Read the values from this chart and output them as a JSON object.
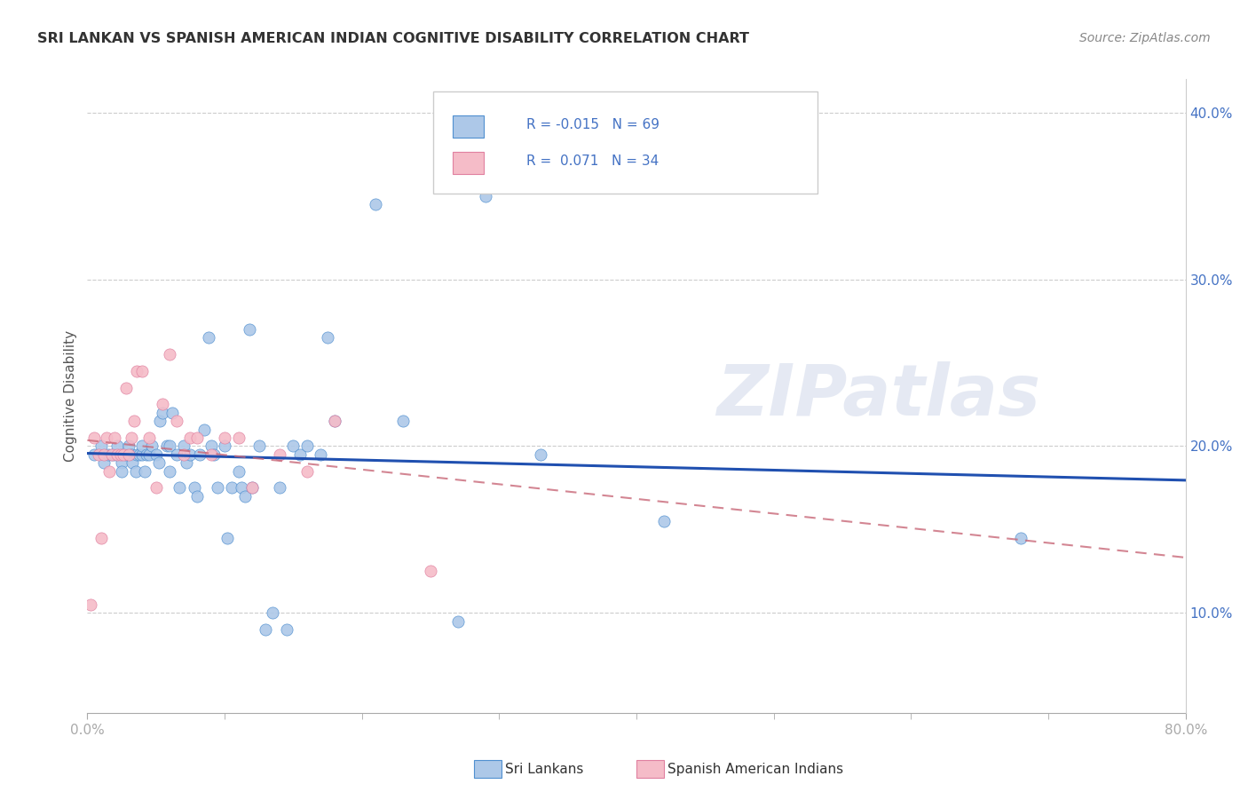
{
  "title": "SRI LANKAN VS SPANISH AMERICAN INDIAN COGNITIVE DISABILITY CORRELATION CHART",
  "source": "Source: ZipAtlas.com",
  "xlim": [
    0.0,
    0.8
  ],
  "ylim": [
    0.04,
    0.42
  ],
  "ylabel": "Cognitive Disability",
  "ylabel_ticks": [
    "10.0%",
    "20.0%",
    "30.0%",
    "40.0%"
  ],
  "ylabel_vals": [
    0.1,
    0.2,
    0.3,
    0.4
  ],
  "xlabel_edge_left": "0.0%",
  "xlabel_edge_right": "80.0%",
  "xlabel_minor_vals": [
    0.1,
    0.2,
    0.3,
    0.4,
    0.5,
    0.6,
    0.7
  ],
  "legend_label1": "Sri Lankans",
  "legend_label2": "Spanish American Indians",
  "R1": "-0.015",
  "N1": "69",
  "R2": "0.071",
  "N2": "34",
  "color_blue": "#adc8e8",
  "color_pink": "#f5bcc8",
  "color_blue_dark": "#5090d0",
  "color_pink_dark": "#e080a0",
  "color_trend_blue": "#2050b0",
  "color_trend_pink": "#c86878",
  "watermark": "ZIPatlas",
  "sri_lankan_x": [
    0.005,
    0.01,
    0.012,
    0.015,
    0.018,
    0.02,
    0.022,
    0.025,
    0.025,
    0.028,
    0.03,
    0.032,
    0.033,
    0.035,
    0.036,
    0.038,
    0.04,
    0.04,
    0.042,
    0.043,
    0.045,
    0.047,
    0.05,
    0.052,
    0.053,
    0.055,
    0.058,
    0.06,
    0.06,
    0.062,
    0.065,
    0.067,
    0.07,
    0.072,
    0.075,
    0.078,
    0.08,
    0.082,
    0.085,
    0.088,
    0.09,
    0.092,
    0.095,
    0.1,
    0.102,
    0.105,
    0.11,
    0.112,
    0.115,
    0.118,
    0.12,
    0.125,
    0.13,
    0.135,
    0.14,
    0.145,
    0.15,
    0.155,
    0.16,
    0.17,
    0.175,
    0.18,
    0.21,
    0.23,
    0.27,
    0.29,
    0.33,
    0.42,
    0.68
  ],
  "sri_lankan_y": [
    0.195,
    0.2,
    0.19,
    0.195,
    0.195,
    0.195,
    0.2,
    0.19,
    0.185,
    0.195,
    0.2,
    0.195,
    0.19,
    0.185,
    0.195,
    0.195,
    0.195,
    0.2,
    0.185,
    0.195,
    0.195,
    0.2,
    0.195,
    0.19,
    0.215,
    0.22,
    0.2,
    0.2,
    0.185,
    0.22,
    0.195,
    0.175,
    0.2,
    0.19,
    0.195,
    0.175,
    0.17,
    0.195,
    0.21,
    0.265,
    0.2,
    0.195,
    0.175,
    0.2,
    0.145,
    0.175,
    0.185,
    0.175,
    0.17,
    0.27,
    0.175,
    0.2,
    0.09,
    0.1,
    0.175,
    0.09,
    0.2,
    0.195,
    0.2,
    0.195,
    0.265,
    0.215,
    0.345,
    0.215,
    0.095,
    0.35,
    0.195,
    0.155,
    0.145
  ],
  "spanish_x": [
    0.002,
    0.005,
    0.008,
    0.01,
    0.012,
    0.014,
    0.016,
    0.018,
    0.02,
    0.022,
    0.024,
    0.026,
    0.028,
    0.03,
    0.032,
    0.034,
    0.036,
    0.04,
    0.045,
    0.05,
    0.055,
    0.06,
    0.065,
    0.07,
    0.075,
    0.08,
    0.09,
    0.1,
    0.11,
    0.12,
    0.14,
    0.16,
    0.18,
    0.25
  ],
  "spanish_y": [
    0.105,
    0.205,
    0.195,
    0.145,
    0.195,
    0.205,
    0.185,
    0.195,
    0.205,
    0.195,
    0.195,
    0.195,
    0.235,
    0.195,
    0.205,
    0.215,
    0.245,
    0.245,
    0.205,
    0.175,
    0.225,
    0.255,
    0.215,
    0.195,
    0.205,
    0.205,
    0.195,
    0.205,
    0.205,
    0.175,
    0.195,
    0.185,
    0.215,
    0.125
  ]
}
